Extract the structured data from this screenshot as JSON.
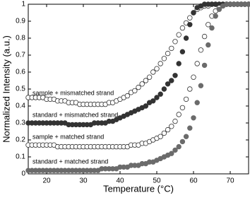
{
  "chart_data": {
    "type": "scatter",
    "xlabel": "Temperature (°C)",
    "ylabel": "Normalized Intensity (a.u.)",
    "xlim": [
      15,
      75
    ],
    "ylim": [
      0,
      1
    ],
    "xticks": [
      20,
      30,
      40,
      50,
      60,
      70
    ],
    "yticks": [
      0,
      0.1,
      0.2,
      0.3,
      0.4,
      0.5,
      0.6,
      0.7,
      0.8,
      0.9,
      1
    ],
    "x": [
      15,
      16,
      17,
      18,
      19,
      20,
      21,
      22,
      23,
      24,
      25,
      26,
      27,
      28,
      29,
      30,
      31,
      32,
      33,
      34,
      35,
      36,
      37,
      38,
      39,
      40,
      41,
      42,
      43,
      44,
      45,
      46,
      47,
      48,
      49,
      50,
      51,
      52,
      53,
      54,
      55,
      56,
      57,
      58,
      59,
      60,
      61,
      62,
      63,
      64,
      65,
      66,
      67,
      68,
      69,
      70,
      71,
      72,
      73,
      74,
      75
    ],
    "series": [
      {
        "name": "sample + mismatched strand",
        "color": "#333333",
        "filled": false,
        "values": [
          0.45,
          0.45,
          0.45,
          0.45,
          0.45,
          0.44,
          0.44,
          0.44,
          0.43,
          0.43,
          0.43,
          0.42,
          0.42,
          0.42,
          0.41,
          0.41,
          0.41,
          0.41,
          0.41,
          0.41,
          0.41,
          0.41,
          0.42,
          0.42,
          0.43,
          0.44,
          0.45,
          0.46,
          0.48,
          0.49,
          0.51,
          0.53,
          0.55,
          0.57,
          0.6,
          0.62,
          0.65,
          0.68,
          0.71,
          0.74,
          0.78,
          0.82,
          0.86,
          0.89,
          0.92,
          0.95,
          0.97,
          0.98,
          0.99,
          0.99,
          1,
          1,
          1,
          1,
          1,
          1,
          1,
          1,
          1,
          1,
          1
        ]
      },
      {
        "name": "standard + mismatched strand",
        "color": "#333333",
        "filled": true,
        "values": [
          0.3,
          0.3,
          0.3,
          0.3,
          0.3,
          0.3,
          0.3,
          0.3,
          0.3,
          0.3,
          0.3,
          0.29,
          0.29,
          0.29,
          0.29,
          0.29,
          0.29,
          0.29,
          0.3,
          0.3,
          0.3,
          0.3,
          0.31,
          0.31,
          0.32,
          0.33,
          0.34,
          0.35,
          0.36,
          0.37,
          0.38,
          0.39,
          0.4,
          0.42,
          0.43,
          0.45,
          0.47,
          0.5,
          0.53,
          0.55,
          0.58,
          0.65,
          0.72,
          0.8,
          0.88,
          0.95,
          0.98,
          0.99,
          1,
          1,
          1,
          1,
          1,
          1,
          1,
          1,
          1,
          1,
          1,
          1,
          1
        ]
      },
      {
        "name": "sample + matched strand",
        "color": "#333333",
        "filled": false,
        "values": [
          0.17,
          0.17,
          0.17,
          0.17,
          0.17,
          0.17,
          0.17,
          0.17,
          0.16,
          0.16,
          0.16,
          0.16,
          0.16,
          0.16,
          0.16,
          0.16,
          0.16,
          0.16,
          0.16,
          0.16,
          0.16,
          0.16,
          0.16,
          0.16,
          0.16,
          0.16,
          0.16,
          0.16,
          0.17,
          0.17,
          0.17,
          0.18,
          0.18,
          0.19,
          0.2,
          0.21,
          0.22,
          0.24,
          0.26,
          0.28,
          0.31,
          0.35,
          0.39,
          0.44,
          0.5,
          0.57,
          0.65,
          0.73,
          0.81,
          0.88,
          0.93,
          0.96,
          0.98,
          0.99,
          1,
          1,
          1,
          1,
          1,
          1,
          1
        ]
      },
      {
        "name": "standard + matched strand",
        "color": "#6b6b6b",
        "filled": true,
        "values": [
          0.02,
          0.02,
          0.02,
          0.02,
          0.02,
          0.02,
          0.02,
          0.02,
          0.02,
          0.02,
          0.02,
          0.02,
          0.02,
          0.02,
          0.02,
          0.02,
          0.02,
          0.02,
          0.02,
          0.02,
          0.03,
          0.03,
          0.03,
          0.03,
          0.03,
          0.04,
          0.04,
          0.04,
          0.05,
          0.05,
          0.05,
          0.06,
          0.06,
          0.07,
          0.07,
          0.08,
          0.09,
          0.1,
          0.11,
          0.12,
          0.14,
          0.16,
          0.19,
          0.22,
          0.27,
          0.33,
          0.42,
          0.52,
          0.64,
          0.76,
          0.86,
          0.93,
          0.97,
          0.99,
          1,
          1,
          1,
          1,
          1,
          1,
          1
        ]
      }
    ]
  }
}
